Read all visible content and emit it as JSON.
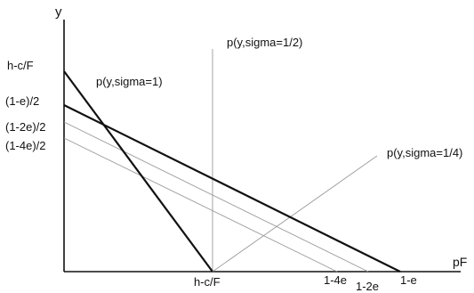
{
  "axes": {
    "y_label": "y",
    "x_label": "pF"
  },
  "y_ticks": [
    "h-c/F",
    "(1-e)/2",
    "(1-2e)/2",
    "(1-4e)/2"
  ],
  "x_ticks": [
    "h-c/F",
    "1-4e",
    "1-2e",
    "1-e"
  ],
  "curves": {
    "sigma_1": "p(y,sigma=1)",
    "sigma_half": "p(y,sigma=1/2)",
    "sigma_quarter": "p(y,sigma=1/4)"
  },
  "colors": {
    "axis": "#111111",
    "bold_line": "#111111",
    "thin_line": "#9a9a9a"
  }
}
